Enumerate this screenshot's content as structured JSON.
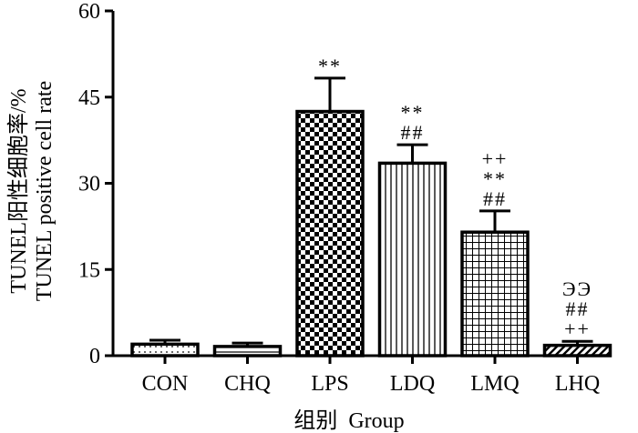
{
  "chart_data": {
    "type": "bar",
    "categories": [
      "CON",
      "CHQ",
      "LPS",
      "LDQ",
      "LMQ",
      "LHQ"
    ],
    "values": [
      2.0,
      1.6,
      42.5,
      33.5,
      21.5,
      1.8
    ],
    "errors": [
      0.7,
      0.6,
      5.8,
      3.2,
      3.7,
      0.7
    ],
    "patterns": [
      "dots",
      "horizontal",
      "checker",
      "vertical",
      "grid",
      "diagonal"
    ],
    "significance": [
      [],
      [],
      [
        "**"
      ],
      [
        "##",
        "**"
      ],
      [
        "##",
        "**",
        "++"
      ],
      [
        "++",
        "##",
        "ЭЭ"
      ]
    ],
    "ylabel_cn": "TUNEL阳性细胞率/%",
    "ylabel_en": "TUNEL positive cell rate",
    "xlabel": "组别  Group",
    "ylim": [
      0,
      60
    ],
    "yticks": [
      "0",
      "15",
      "30",
      "45",
      "60"
    ]
  }
}
